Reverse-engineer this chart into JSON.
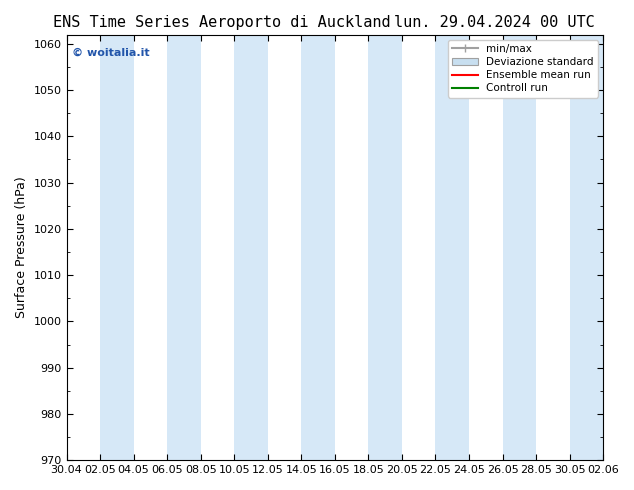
{
  "title_left": "ENS Time Series Aeroporto di Auckland",
  "title_right": "lun. 29.04.2024 00 UTC",
  "ylabel": "Surface Pressure (hPa)",
  "ylim": [
    970,
    1062
  ],
  "yticks": [
    970,
    980,
    990,
    1000,
    1010,
    1020,
    1030,
    1040,
    1050,
    1060
  ],
  "copyright": "© woitalia.it",
  "bg_color": "#ffffff",
  "plot_bg_color": "#ffffff",
  "band_color": "#d6e8f7",
  "legend_items": [
    "min/max",
    "Deviazione standard",
    "Ensemble mean run",
    "Controll run"
  ],
  "legend_colors": [
    "#a0a0a0",
    "#c0d8ec",
    "#ff0000",
    "#008000"
  ],
  "x_tick_labels": [
    "30.04",
    "02.05",
    "04.05",
    "06.05",
    "08.05",
    "10.05",
    "12.05",
    "14.05",
    "16.05",
    "18.05",
    "20.05",
    "22.05",
    "24.05",
    "26.05",
    "28.05",
    "30.05",
    "02.06"
  ],
  "shade_positions": [
    4,
    10,
    16,
    22,
    28,
    34
  ],
  "title_fontsize": 11,
  "label_fontsize": 9,
  "tick_fontsize": 8
}
